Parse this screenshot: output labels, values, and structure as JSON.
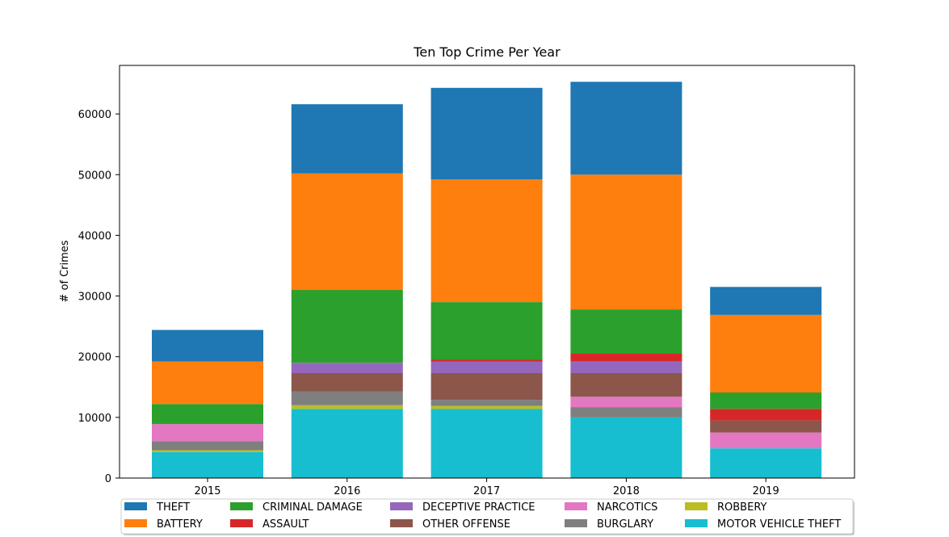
{
  "chart_data": {
    "type": "bar",
    "stacked": true,
    "title": "Ten Top Crime Per Year",
    "xlabel": "",
    "ylabel": "# of Crimes",
    "categories": [
      "2015",
      "2016",
      "2017",
      "2018",
      "2019"
    ],
    "ylim": [
      0,
      68000
    ],
    "yticks": [
      0,
      10000,
      20000,
      30000,
      40000,
      50000,
      60000
    ],
    "legend_position": "bottom",
    "series": [
      {
        "name": "MOTOR VEHICLE THEFT",
        "color": "#17becf",
        "values": [
          4300,
          11400,
          11400,
          10000,
          4900
        ]
      },
      {
        "name": "ROBBERY",
        "color": "#bcbd22",
        "values": [
          300,
          600,
          500,
          0,
          0
        ]
      },
      {
        "name": "BURGLARY",
        "color": "#7f7f7f",
        "values": [
          1500,
          2300,
          1000,
          1700,
          0
        ]
      },
      {
        "name": "NARCOTICS",
        "color": "#e377c2",
        "values": [
          2800,
          0,
          0,
          1700,
          2600
        ]
      },
      {
        "name": "OTHER OFFENSE",
        "color": "#8c564b",
        "values": [
          0,
          3000,
          4400,
          3900,
          2000
        ]
      },
      {
        "name": "DECEPTIVE PRACTICE",
        "color": "#9467bd",
        "values": [
          0,
          1700,
          1900,
          1900,
          0
        ]
      },
      {
        "name": "ASSAULT",
        "color": "#d62728",
        "values": [
          0,
          0,
          300,
          1300,
          1900
        ]
      },
      {
        "name": "CRIMINAL DAMAGE",
        "color": "#2ca02c",
        "values": [
          3300,
          12000,
          9500,
          7300,
          2700
        ]
      },
      {
        "name": "BATTERY",
        "color": "#ff7f0e",
        "values": [
          7000,
          19200,
          20200,
          22200,
          12800
        ]
      },
      {
        "name": "THEFT",
        "color": "#1f77b4",
        "values": [
          5200,
          11400,
          15100,
          15300,
          4600
        ]
      }
    ],
    "legend_order": [
      "THEFT",
      "BATTERY",
      "CRIMINAL DAMAGE",
      "ASSAULT",
      "DECEPTIVE PRACTICE",
      "OTHER OFFENSE",
      "NARCOTICS",
      "BURGLARY",
      "ROBBERY",
      "MOTOR VEHICLE THEFT"
    ]
  }
}
